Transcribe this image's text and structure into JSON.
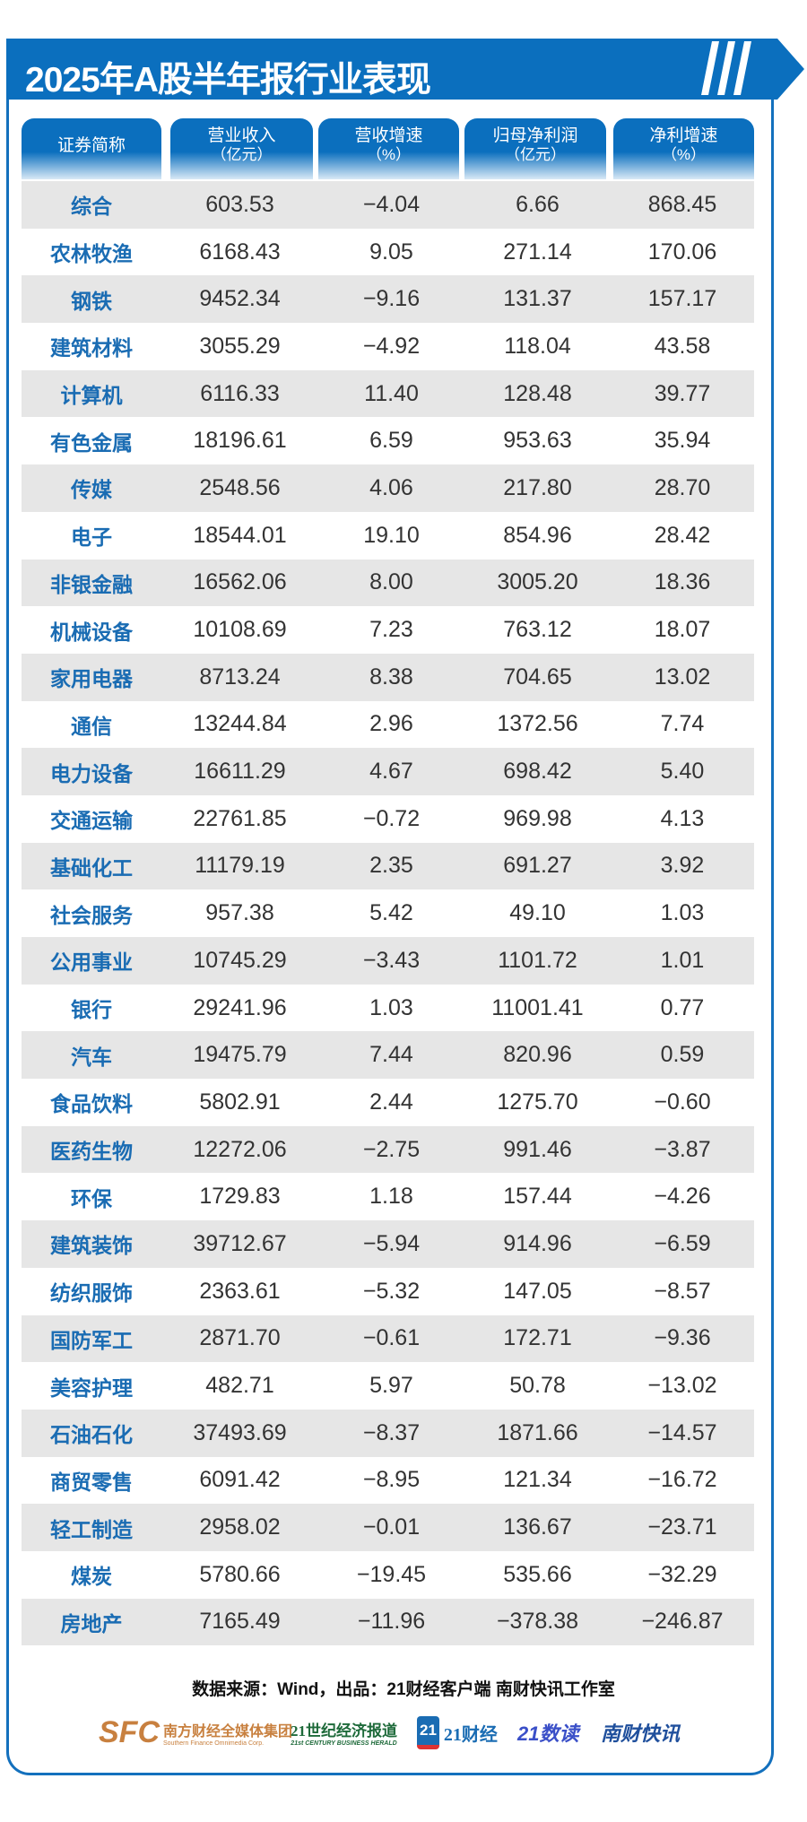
{
  "title": "2025年A股半年报行业表现",
  "colors": {
    "brand_blue": "#0b6fbe",
    "name_blue": "#1a6cb3",
    "row_gray": "#e6e6e6"
  },
  "headers": [
    {
      "label": "证券简称",
      "unit": ""
    },
    {
      "label": "营业收入",
      "unit": "（亿元）"
    },
    {
      "label": "营收增速",
      "unit": "（%）"
    },
    {
      "label": "归母净利润",
      "unit": "（亿元）"
    },
    {
      "label": "净利增速",
      "unit": "（%）"
    }
  ],
  "rows": [
    [
      "综合",
      "603.53",
      "−4.04",
      "6.66",
      "868.45"
    ],
    [
      "农林牧渔",
      "6168.43",
      "9.05",
      "271.14",
      "170.06"
    ],
    [
      "钢铁",
      "9452.34",
      "−9.16",
      "131.37",
      "157.17"
    ],
    [
      "建筑材料",
      "3055.29",
      "−4.92",
      "118.04",
      "43.58"
    ],
    [
      "计算机",
      "6116.33",
      "11.40",
      "128.48",
      "39.77"
    ],
    [
      "有色金属",
      "18196.61",
      "6.59",
      "953.63",
      "35.94"
    ],
    [
      "传媒",
      "2548.56",
      "4.06",
      "217.80",
      "28.70"
    ],
    [
      "电子",
      "18544.01",
      "19.10",
      "854.96",
      "28.42"
    ],
    [
      "非银金融",
      "16562.06",
      "8.00",
      "3005.20",
      "18.36"
    ],
    [
      "机械设备",
      "10108.69",
      "7.23",
      "763.12",
      "18.07"
    ],
    [
      "家用电器",
      "8713.24",
      "8.38",
      "704.65",
      "13.02"
    ],
    [
      "通信",
      "13244.84",
      "2.96",
      "1372.56",
      "7.74"
    ],
    [
      "电力设备",
      "16611.29",
      "4.67",
      "698.42",
      "5.40"
    ],
    [
      "交通运输",
      "22761.85",
      "−0.72",
      "969.98",
      "4.13"
    ],
    [
      "基础化工",
      "11179.19",
      "2.35",
      "691.27",
      "3.92"
    ],
    [
      "社会服务",
      "957.38",
      "5.42",
      "49.10",
      "1.03"
    ],
    [
      "公用事业",
      "10745.29",
      "−3.43",
      "1101.72",
      "1.01"
    ],
    [
      "银行",
      "29241.96",
      "1.03",
      "11001.41",
      "0.77"
    ],
    [
      "汽车",
      "19475.79",
      "7.44",
      "820.96",
      "0.59"
    ],
    [
      "食品饮料",
      "5802.91",
      "2.44",
      "1275.70",
      "−0.60"
    ],
    [
      "医药生物",
      "12272.06",
      "−2.75",
      "991.46",
      "−3.87"
    ],
    [
      "环保",
      "1729.83",
      "1.18",
      "157.44",
      "−4.26"
    ],
    [
      "建筑装饰",
      "39712.67",
      "−5.94",
      "914.96",
      "−6.59"
    ],
    [
      "纺织服饰",
      "2363.61",
      "−5.32",
      "147.05",
      "−8.57"
    ],
    [
      "国防军工",
      "2871.70",
      "−0.61",
      "172.71",
      "−9.36"
    ],
    [
      "美容护理",
      "482.71",
      "5.97",
      "50.78",
      "−13.02"
    ],
    [
      "石油石化",
      "37493.69",
      "−8.37",
      "1871.66",
      "−14.57"
    ],
    [
      "商贸零售",
      "6091.42",
      "−8.95",
      "121.34",
      "−16.72"
    ],
    [
      "轻工制造",
      "2958.02",
      "−0.01",
      "136.67",
      "−23.71"
    ],
    [
      "煤炭",
      "5780.66",
      "−19.45",
      "535.66",
      "−32.29"
    ],
    [
      "房地产",
      "7165.49",
      "−11.96",
      "−378.38",
      "−246.87"
    ]
  ],
  "footer": {
    "source": "数据来源：Wind，出品：21财经客户端 南财快讯工作室",
    "logos": [
      {
        "mark": "SFC",
        "name": "南方财经全媒体集团",
        "sub": "Southern Finance Omnimedia Corp.",
        "color": "#c8803f"
      },
      {
        "name": "21世纪经济报道",
        "sub": "21st CENTURY BUSINESS HERALD",
        "color": "#1e6a3a"
      },
      {
        "mark": "21",
        "name": "21财经",
        "color": "#1a6cb3"
      },
      {
        "name": "21数读",
        "color": "#3a4fc8"
      },
      {
        "name": "南财快讯",
        "color": "#1f4f9c"
      }
    ]
  }
}
